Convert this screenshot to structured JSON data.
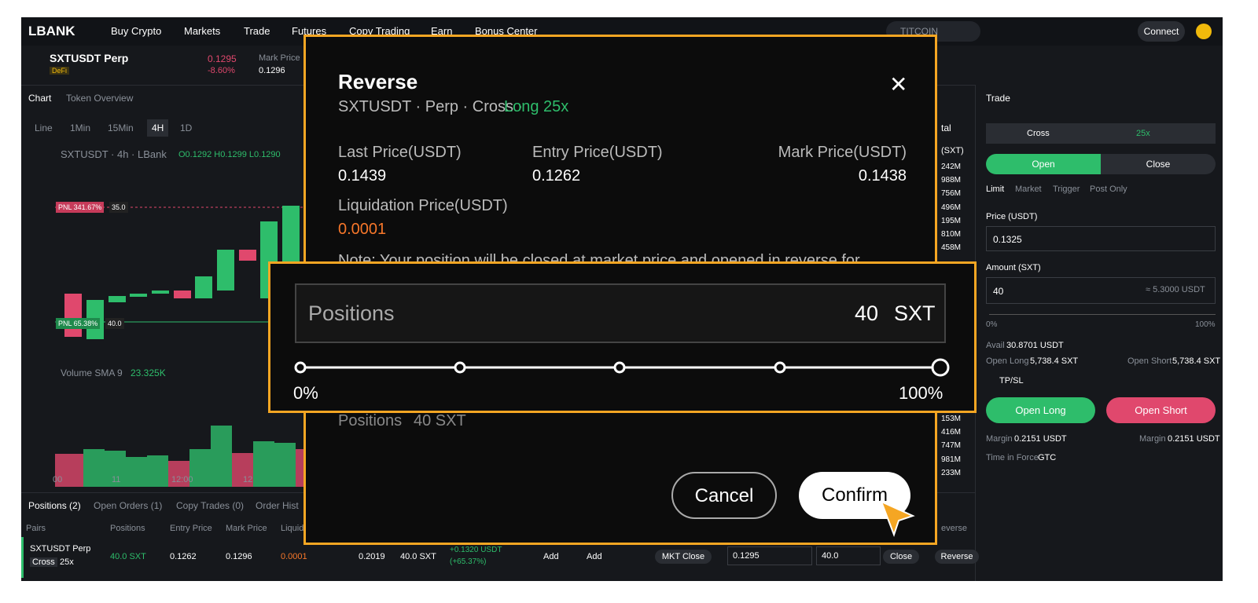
{
  "nav": {
    "logo": "LBANK",
    "menu": [
      "Buy Crypto",
      "Markets",
      "Trade",
      "Futures",
      "Copy Trading",
      "Earn",
      "Bonus Center"
    ],
    "search": "TITCOIN",
    "connect": "Connect"
  },
  "ticker": {
    "symbol": "SXTUSDT Perp",
    "tag": "DeFi",
    "price": "0.1295",
    "change": "-8.60%",
    "mark_label": "Mark Price",
    "mark": "0.1296"
  },
  "chart": {
    "tabs": [
      "Chart",
      "Token Overview"
    ],
    "intervals": [
      "Line",
      "1Min",
      "15Min",
      "4H",
      "1D"
    ],
    "legend": "SXTUSDT · 4h · LBank",
    "ohlc": "O0.1292 H0.1299 L0.1290",
    "pnl_1": {
      "label": "PNL 341.67%",
      "qty": "35.0"
    },
    "pnl_2": {
      "label": "PNL 65.38%",
      "qty": "40.0"
    },
    "volume_label": "Volume SMA 9",
    "volume_value": "23.325K",
    "xaxis": [
      "00",
      "11",
      "12:00",
      "12"
    ],
    "axis_total": "tal",
    "axis_unit": "(SXT)",
    "axis_labels_top": [
      "242M",
      "988M",
      "756M",
      "496M",
      "195M",
      "810M",
      "458M"
    ],
    "axis_labels_bottom": [
      "153M",
      "416M",
      "747M",
      "981M",
      "233M"
    ]
  },
  "positions": {
    "tabs": [
      "Positions (2)",
      "Open Orders (1)",
      "Copy Trades (0)",
      "Order Hist"
    ],
    "headers": [
      "Pairs",
      "Positions",
      "Entry Price",
      "Mark Price",
      "Liquid",
      "everse"
    ],
    "row": {
      "pair": "SXTUSDT Perp",
      "mode": "Cross",
      "leverage": "25x",
      "size": "40.0 SXT",
      "entry": "0.1262",
      "mark": "0.1296",
      "liq": "0.0001",
      "margin": "0.2019",
      "closable": "40.0 SXT",
      "pnl": "+0.1320 USDT",
      "pnl_pct": "(+65.37%)",
      "add_1": "Add",
      "add_2": "Add",
      "mkt_close": "MKT Close",
      "close_price": "0.1295",
      "close_qty": "40.0",
      "close": "Close",
      "reverse": "Reverse"
    }
  },
  "trade": {
    "title": "Trade",
    "mode": "Cross",
    "leverage": "25x",
    "open": "Open",
    "close": "Close",
    "order_types": [
      "Limit",
      "Market",
      "Trigger",
      "Post Only"
    ],
    "price_label": "Price (USDT)",
    "price": "0.1325",
    "amount_label": "Amount (SXT)",
    "amount": "40",
    "amount_usdt": "≈ 5.3000 USDT",
    "slider_min": "0%",
    "slider_max": "100%",
    "avail_label": "Avail",
    "avail": "30.8701 USDT",
    "max_long_label": "Open Long",
    "max_long": "5,738.4 SXT",
    "max_short_label": "Open Short",
    "max_short": "5,738.4 SXT",
    "tpsl": "TP/SL",
    "long_button": "Open Long",
    "short_button": "Open Short",
    "margin_label": "Margin",
    "margin_long": "0.2151 USDT",
    "margin_short": "0.2151 USDT",
    "tif_label": "Time in Force",
    "tif": "GTC"
  },
  "modal": {
    "title": "Reverse",
    "subtitle": "SXTUSDT · Perp · Cross ·",
    "side": "Long 25x",
    "fields": [
      {
        "label": "Last Price(USDT)",
        "value": "0.1439"
      },
      {
        "label": "Entry Price(USDT)",
        "value": "0.1262"
      },
      {
        "label": "Mark Price(USDT)",
        "value": "0.1438"
      },
      {
        "label": "Liquidation Price(USDT)",
        "value": "0.0001"
      }
    ],
    "note": "Note: Your position will be closed at market price and opened in reverse for",
    "positions_label": "Positions",
    "positions_value": "40 SXT",
    "cancel": "Cancel",
    "confirm": "Confirm"
  },
  "zoom": {
    "label": "Positions",
    "amount": "40",
    "unit": "SXT",
    "min_label": "0%",
    "max_label": "100%"
  }
}
